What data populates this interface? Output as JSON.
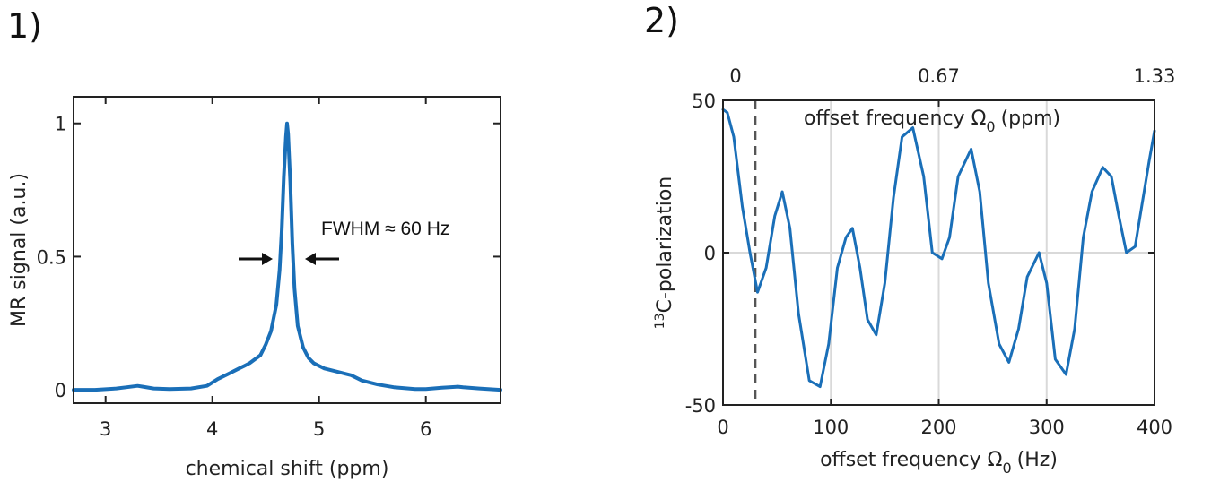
{
  "chart_data": [
    {
      "panel_label": "1)",
      "type": "line",
      "xlabel": "chemical shift (ppm)",
      "ylabel": "MR signal (a.u.)",
      "xlim": [
        2.7,
        6.7
      ],
      "ylim": [
        -0.05,
        1.1
      ],
      "x_ticks": [
        3,
        4,
        5,
        6
      ],
      "x_tick_labels": [
        "3",
        "4",
        "5",
        "6"
      ],
      "y_ticks": [
        0,
        0.5,
        1
      ],
      "y_tick_labels": [
        "0",
        "0.5",
        "1"
      ],
      "grid": false,
      "color": "#1a6fb8",
      "annotation": "FWHM ≈ 60 Hz",
      "series": [
        {
          "x": [
            2.7,
            2.9,
            3.1,
            3.2,
            3.3,
            3.35,
            3.45,
            3.6,
            3.8,
            3.95,
            4.05,
            4.15,
            4.25,
            4.3,
            4.35,
            4.45,
            4.5,
            4.55,
            4.6,
            4.63,
            4.65,
            4.67,
            4.69,
            4.7,
            4.71,
            4.73,
            4.75,
            4.77,
            4.8,
            4.85,
            4.9,
            4.95,
            5.05,
            5.15,
            5.25,
            5.3,
            5.4,
            5.55,
            5.7,
            5.9,
            6.0,
            6.15,
            6.3,
            6.35,
            6.5,
            6.7
          ],
          "y": [
            0.0,
            0.0,
            0.005,
            0.01,
            0.015,
            0.012,
            0.005,
            0.003,
            0.005,
            0.015,
            0.04,
            0.06,
            0.08,
            0.09,
            0.1,
            0.13,
            0.17,
            0.22,
            0.32,
            0.45,
            0.6,
            0.8,
            0.95,
            1.0,
            0.96,
            0.78,
            0.55,
            0.38,
            0.24,
            0.16,
            0.12,
            0.1,
            0.08,
            0.07,
            0.06,
            0.055,
            0.035,
            0.02,
            0.01,
            0.003,
            0.003,
            0.008,
            0.012,
            0.01,
            0.005,
            0.0
          ]
        }
      ]
    },
    {
      "panel_label": "2)",
      "type": "line",
      "xlabel": "offset frequency Ω",
      "xlabel_sub": "0",
      "xlabel_unit": "(Hz)",
      "top_xlabel": "offset frequency Ω",
      "top_xlabel_sub": "0",
      "top_xlabel_unit": "(ppm)",
      "ylabel_sup": "13",
      "ylabel": "C-polarization",
      "xlim": [
        0,
        400
      ],
      "ylim": [
        -50,
        50
      ],
      "x_ticks": [
        0,
        100,
        200,
        300,
        400
      ],
      "x_tick_labels": [
        "0",
        "100",
        "200",
        "300",
        "400"
      ],
      "top_ticks": [
        0,
        200,
        400
      ],
      "top_tick_labels": [
        "0",
        "0.67",
        "1.33"
      ],
      "y_ticks": [
        -50,
        0,
        50
      ],
      "y_tick_labels": [
        "-50",
        "0",
        "50"
      ],
      "grid": true,
      "dashed_line_x": 30,
      "color": "#1a6fb8",
      "series": [
        {
          "x": [
            0,
            4,
            10,
            18,
            25,
            32,
            40,
            48,
            55,
            62,
            70,
            80,
            90,
            98,
            106,
            114,
            120,
            127,
            134,
            142,
            150,
            158,
            166,
            176,
            186,
            194,
            203,
            210,
            218,
            230,
            238,
            246,
            256,
            265,
            274,
            282,
            293,
            300,
            308,
            318,
            326,
            334,
            342,
            352,
            360,
            367,
            374,
            382,
            388,
            395,
            400
          ],
          "y": [
            47,
            46,
            38,
            15,
            0,
            -13,
            -5,
            12,
            20,
            8,
            -20,
            -42,
            -44,
            -30,
            -5,
            5,
            8,
            -5,
            -22,
            -27,
            -10,
            18,
            38,
            41,
            25,
            0,
            -2,
            5,
            25,
            34,
            20,
            -10,
            -30,
            -36,
            -25,
            -8,
            0,
            -10,
            -35,
            -40,
            -25,
            5,
            20,
            28,
            25,
            12,
            0,
            2,
            15,
            30,
            40
          ]
        }
      ]
    }
  ]
}
